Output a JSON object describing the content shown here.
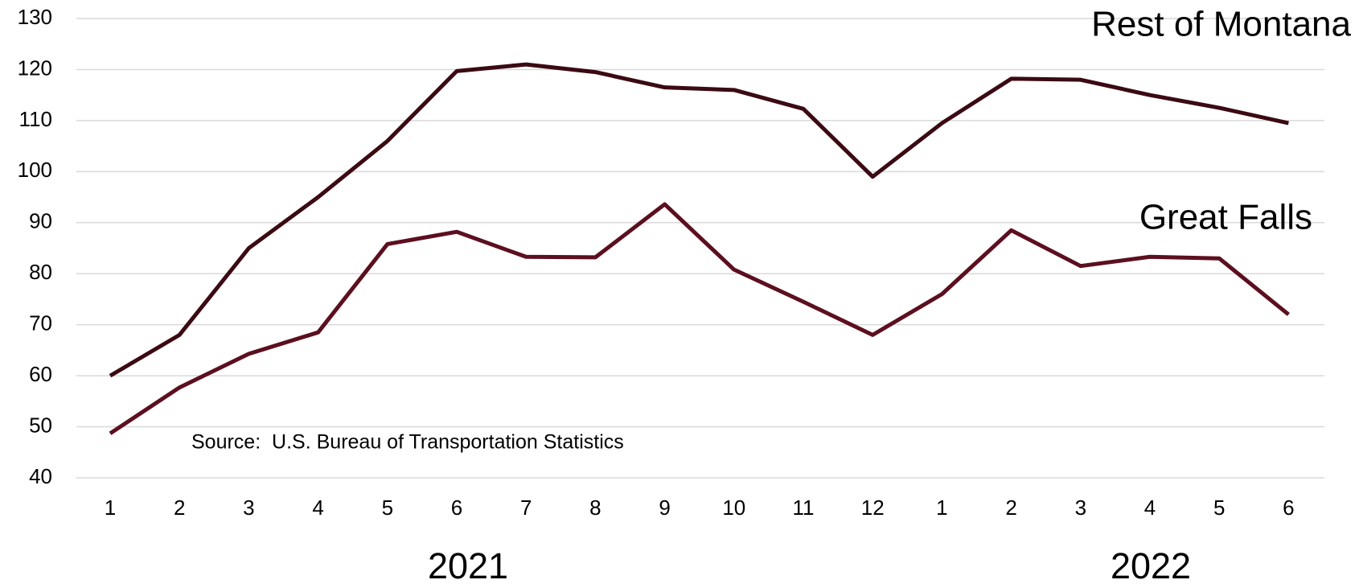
{
  "chart_data": {
    "type": "line",
    "categories": [
      "1",
      "2",
      "3",
      "4",
      "5",
      "6",
      "7",
      "8",
      "9",
      "10",
      "11",
      "12",
      "1",
      "2",
      "3",
      "4",
      "5",
      "6"
    ],
    "x_group_labels": [
      "2021",
      "2022"
    ],
    "annotation": "Source:  U.S. Bureau of Transportation Statistics",
    "series": [
      {
        "name": "Rest of Montana",
        "color": "#3b0a12",
        "values": [
          60,
          68,
          85,
          95,
          106,
          119.7,
          121,
          119.5,
          116.5,
          116,
          112.3,
          99,
          109.5,
          118.2,
          118,
          115,
          112.5,
          109.5
        ]
      },
      {
        "name": "Great Falls",
        "color": "#5c0f1f",
        "values": [
          48.7,
          57.7,
          64.3,
          68.5,
          85.8,
          88.2,
          83.3,
          83.2,
          93.6,
          80.8,
          74.5,
          68,
          76,
          88.5,
          81.5,
          83.3,
          83,
          72
        ]
      }
    ],
    "ylim": [
      40,
      130
    ],
    "yticks": [
      40,
      50,
      60,
      70,
      80,
      90,
      100,
      110,
      120,
      130
    ],
    "grid": true
  }
}
